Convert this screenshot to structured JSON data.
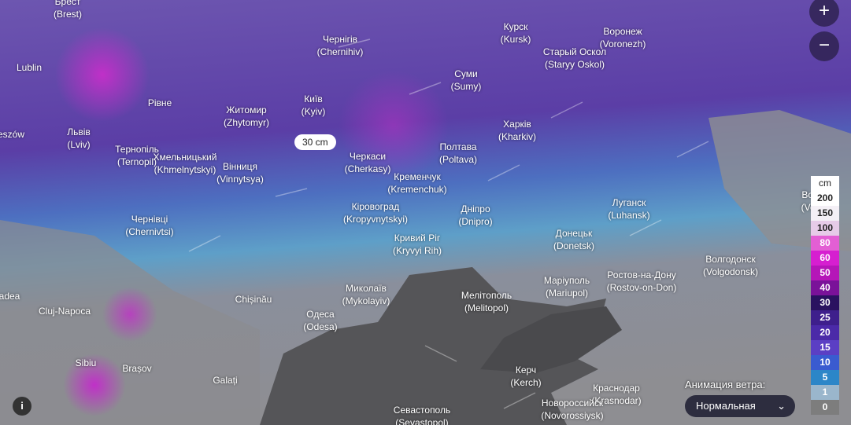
{
  "popup": "30 cm",
  "controls": {
    "zoom_in": "+",
    "zoom_out": "−",
    "wind_label": "Анимация ветра:",
    "wind_option": "Нормальная",
    "info": "i"
  },
  "legend": {
    "unit": "cm",
    "labels": [
      200,
      150,
      100,
      80,
      60,
      50,
      40,
      30,
      25,
      20,
      15,
      10,
      5,
      1,
      0
    ],
    "colors": [
      "#ffffff",
      "#f4f0f6",
      "#e6cbe8",
      "#e35fd4",
      "#d61fd0",
      "#b516b8",
      "#7a1299",
      "#2a1260",
      "#3e1f8c",
      "#4b2aa8",
      "#5b3fc4",
      "#3a5bd0",
      "#2c86c8",
      "#9ab6cc",
      "#7d7d7d"
    ]
  },
  "cities": [
    {
      "name": "Брест",
      "latin": "(Brest)"
    },
    {
      "name": "Чернігів",
      "latin": "(Chernihiv)"
    },
    {
      "name": "Курск",
      "latin": "(Kursk)"
    },
    {
      "name": "Воронеж",
      "latin": "(Voronezh)"
    },
    {
      "name": "Старый Оскол",
      "latin": "(Staryy Oskol)"
    },
    {
      "name": "Lublin"
    },
    {
      "name": "Рівне"
    },
    {
      "name": "Житомир",
      "latin": "(Zhytomyr)"
    },
    {
      "name": "Київ",
      "latin": "(Kyiv)"
    },
    {
      "name": "Суми",
      "latin": "(Sumy)"
    },
    {
      "name": "Харків",
      "latin": "(Kharkiv)"
    },
    {
      "name": "Львів",
      "latin": "(Lviv)"
    },
    {
      "name": "Тернопіль",
      "latin": "(Ternopil)"
    },
    {
      "name": "Хмельницький",
      "latin": "(Khmelnytskyi)"
    },
    {
      "name": "Вінниця",
      "latin": "(Vinnytsya)"
    },
    {
      "name": "Черкаси",
      "latin": "(Cherkasy)"
    },
    {
      "name": "Полтава",
      "latin": "(Poltava)"
    },
    {
      "name": "Кременчук",
      "latin": "(Kremenchuk)"
    },
    {
      "name": "Кіровоград",
      "latin": "(Kropyvnytskyi)"
    },
    {
      "name": "Дніпро",
      "latin": "(Dnipro)"
    },
    {
      "name": "Луганск",
      "latin": "(Luhansk)"
    },
    {
      "name": "Чернівці",
      "latin": "(Chernivtsi)"
    },
    {
      "name": "Кривий Ріг",
      "latin": "(Kryvyi Rih)"
    },
    {
      "name": "Донецьк",
      "latin": "(Donetsk)"
    },
    {
      "name": "Волгодонск",
      "latin": "(Volgodonsk)"
    },
    {
      "name": "Маріуполь",
      "latin": "(Mariupol)"
    },
    {
      "name": "Ростов-на-Дону",
      "latin": "(Rostov-on-Don)"
    },
    {
      "name": "Миколаїв",
      "latin": "(Mykolayiv)"
    },
    {
      "name": "Мелітополь",
      "latin": "(Melitopol)"
    },
    {
      "name": "Одеса",
      "latin": "(Odesa)"
    },
    {
      "name": "Chișinău"
    },
    {
      "name": "Cluj-Napoca"
    },
    {
      "name": "Sibiu"
    },
    {
      "name": "Brașov"
    },
    {
      "name": "Galați"
    },
    {
      "name": "Керч",
      "latin": "(Kerch)"
    },
    {
      "name": "Краснодар",
      "latin": "(Krasnodar)"
    },
    {
      "name": "Новороссийск",
      "latin": "(Novorossiysk)"
    },
    {
      "name": "Севастополь",
      "latin": "(Sevastopol)"
    },
    {
      "name": "eszów"
    },
    {
      "name": "adea"
    },
    {
      "name": "Волгогр",
      "latin": "(Volgogr"
    }
  ]
}
